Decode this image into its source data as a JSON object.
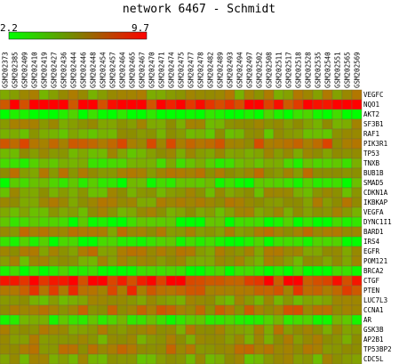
{
  "chart_data": {
    "type": "heatmap",
    "title": "network 6467 - Schmidt",
    "scale": {
      "min": 2.2,
      "max": 9.7,
      "min_label": "2.2",
      "max_label": "9.7",
      "low_color": "#00ff00",
      "high_color": "#ff0000"
    },
    "columns": [
      "GSM202373",
      "GSM202385",
      "GSM202409",
      "GSM202410",
      "GSM202419",
      "GSM202427",
      "GSM202436",
      "GSM202444",
      "GSM202446",
      "GSM202448",
      "GSM202454",
      "GSM202457",
      "GSM202464",
      "GSM202465",
      "GSM202467",
      "GSM202470",
      "GSM202471",
      "GSM202474",
      "GSM202475",
      "GSM202477",
      "GSM202478",
      "GSM202482",
      "GSM202489",
      "GSM202493",
      "GSM202494",
      "GSM202497",
      "GSM202502",
      "GSM202508",
      "GSM202511",
      "GSM202517",
      "GSM202518",
      "GSM202528",
      "GSM202535",
      "GSM202540",
      "GSM202551",
      "GSM202565",
      "GSM202569"
    ],
    "rows": [
      "VEGFC",
      "NQO1",
      "AKT2",
      "SF3B1",
      "RAF1",
      "PIK3R1",
      "TP53",
      "TNXB",
      "BUB1B",
      "SMAD5",
      "CDKN1A",
      "IKBKAP",
      "VEGFA",
      "DYNC1I1",
      "BARD1",
      "IRS4",
      "EGFR",
      "POM121",
      "BRCA2",
      "CTGF",
      "PTEN",
      "LUC7L3",
      "CCNA1",
      "AR",
      "GSK3B",
      "AP2B1",
      "TP53BP2",
      "CDC5L"
    ],
    "row_levels": [
      5.9,
      9.3,
      2.4,
      5.6,
      5.2,
      7.3,
      5.3,
      3.8,
      6.3,
      3.3,
      5.4,
      6.1,
      5.5,
      2.8,
      6.4,
      2.7,
      6.3,
      5.6,
      2.6,
      8.9,
      7.8,
      5.4,
      7.0,
      3.6,
      6.1,
      5.8,
      6.7,
      5.4
    ]
  }
}
